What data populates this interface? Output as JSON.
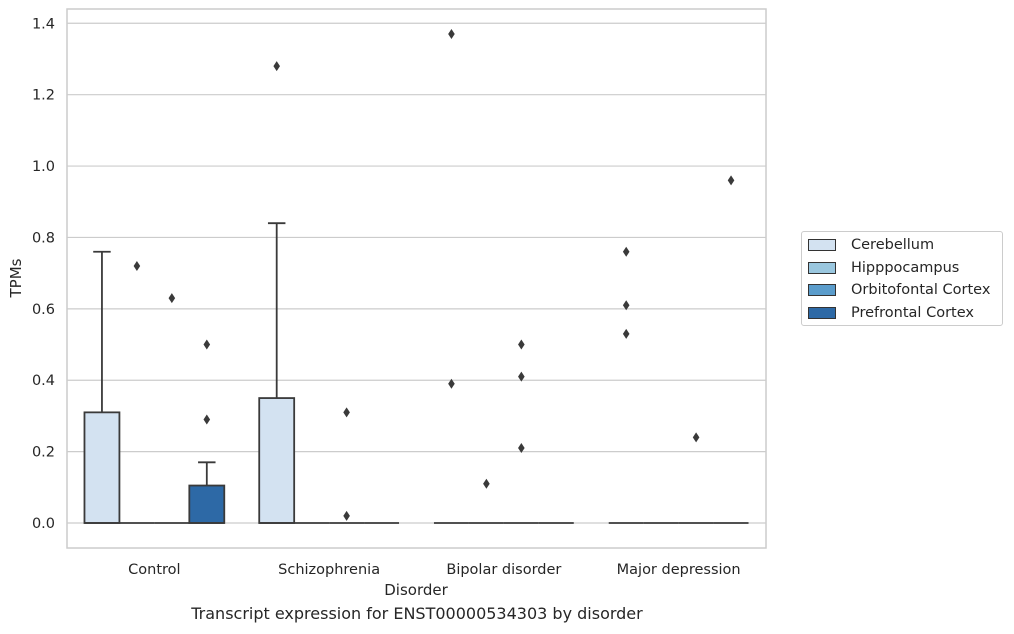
{
  "caption": "Transcript expression for ENST00000534303 by disorder",
  "chart_data": {
    "type": "box",
    "xlabel": "Disorder",
    "ylabel": "TPMs",
    "ylim": [
      -0.07,
      1.44
    ],
    "yticks": [
      "0.0",
      "0.2",
      "0.4",
      "0.6",
      "0.8",
      "1.0",
      "1.2",
      "1.4"
    ],
    "grid": true,
    "legend_position": "right",
    "categories": [
      "Control",
      "Schizophrenia",
      "Bipolar disorder",
      "Major depression"
    ],
    "series": [
      {
        "name": "Cerebellum",
        "color": "#d3e2f1",
        "boxes": [
          {
            "min": 0,
            "q1": 0,
            "median": 0,
            "q3": 0.31,
            "max": 0.76,
            "outliers": []
          },
          {
            "min": 0,
            "q1": 0,
            "median": 0,
            "q3": 0.35,
            "max": 0.84,
            "outliers": [
              1.28
            ]
          },
          {
            "min": 0,
            "q1": 0,
            "median": 0,
            "q3": 0,
            "max": 0,
            "outliers": [
              1.37,
              0.39
            ]
          },
          {
            "min": 0,
            "q1": 0,
            "median": 0,
            "q3": 0,
            "max": 0,
            "outliers": [
              0.76,
              0.61,
              0.53
            ]
          }
        ]
      },
      {
        "name": "Hipppocampus",
        "color": "#9ac7df",
        "boxes": [
          {
            "min": 0,
            "q1": 0,
            "median": 0,
            "q3": 0,
            "max": 0,
            "outliers": [
              0.72
            ]
          },
          {
            "min": 0,
            "q1": 0,
            "median": 0,
            "q3": 0,
            "max": 0,
            "outliers": []
          },
          {
            "min": 0,
            "q1": 0,
            "median": 0,
            "q3": 0,
            "max": 0,
            "outliers": [
              0.11
            ]
          },
          {
            "min": 0,
            "q1": 0,
            "median": 0,
            "q3": 0,
            "max": 0,
            "outliers": []
          }
        ]
      },
      {
        "name": "Orbitofontal Cortex",
        "color": "#5a9ccb",
        "boxes": [
          {
            "min": 0,
            "q1": 0,
            "median": 0,
            "q3": 0,
            "max": 0,
            "outliers": [
              0.63
            ]
          },
          {
            "min": 0,
            "q1": 0,
            "median": 0,
            "q3": 0,
            "max": 0,
            "outliers": [
              0.31,
              0.02
            ]
          },
          {
            "min": 0,
            "q1": 0,
            "median": 0,
            "q3": 0,
            "max": 0,
            "outliers": [
              0.5,
              0.41,
              0.21
            ]
          },
          {
            "min": 0,
            "q1": 0,
            "median": 0,
            "q3": 0,
            "max": 0,
            "outliers": [
              0.24
            ]
          }
        ]
      },
      {
        "name": "Prefrontal Cortex",
        "color": "#2d69a6",
        "boxes": [
          {
            "min": 0,
            "q1": 0,
            "median": 0,
            "q3": 0.105,
            "max": 0.17,
            "outliers": [
              0.5,
              0.29
            ]
          },
          {
            "min": 0,
            "q1": 0,
            "median": 0,
            "q3": 0,
            "max": 0,
            "outliers": []
          },
          {
            "min": 0,
            "q1": 0,
            "median": 0,
            "q3": 0,
            "max": 0,
            "outliers": []
          },
          {
            "min": 0,
            "q1": 0,
            "median": 0,
            "q3": 0,
            "max": 0,
            "outliers": [
              0.96
            ]
          }
        ]
      }
    ]
  }
}
